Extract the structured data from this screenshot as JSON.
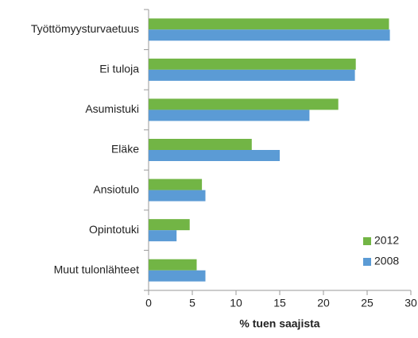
{
  "chart_data": {
    "type": "bar",
    "orientation": "horizontal",
    "categories": [
      "Työttömyysturvaetuus",
      "Ei tuloja",
      "Asumistuki",
      "Eläke",
      "Ansiotulo",
      "Opintotuki",
      "Muut tulonlähteet"
    ],
    "series": [
      {
        "name": "2012",
        "color": "#72b545",
        "values": [
          27.5,
          23.7,
          21.7,
          11.8,
          6.1,
          4.7,
          5.5
        ]
      },
      {
        "name": "2008",
        "color": "#5b9bd5",
        "values": [
          27.6,
          23.6,
          18.4,
          15.0,
          6.5,
          3.2,
          6.5
        ]
      }
    ],
    "xlabel": "% tuen saajista",
    "xlim": [
      0,
      30
    ],
    "xticks": [
      0,
      5,
      10,
      15,
      20,
      25,
      30
    ],
    "grid": false,
    "legend": "lower right"
  }
}
